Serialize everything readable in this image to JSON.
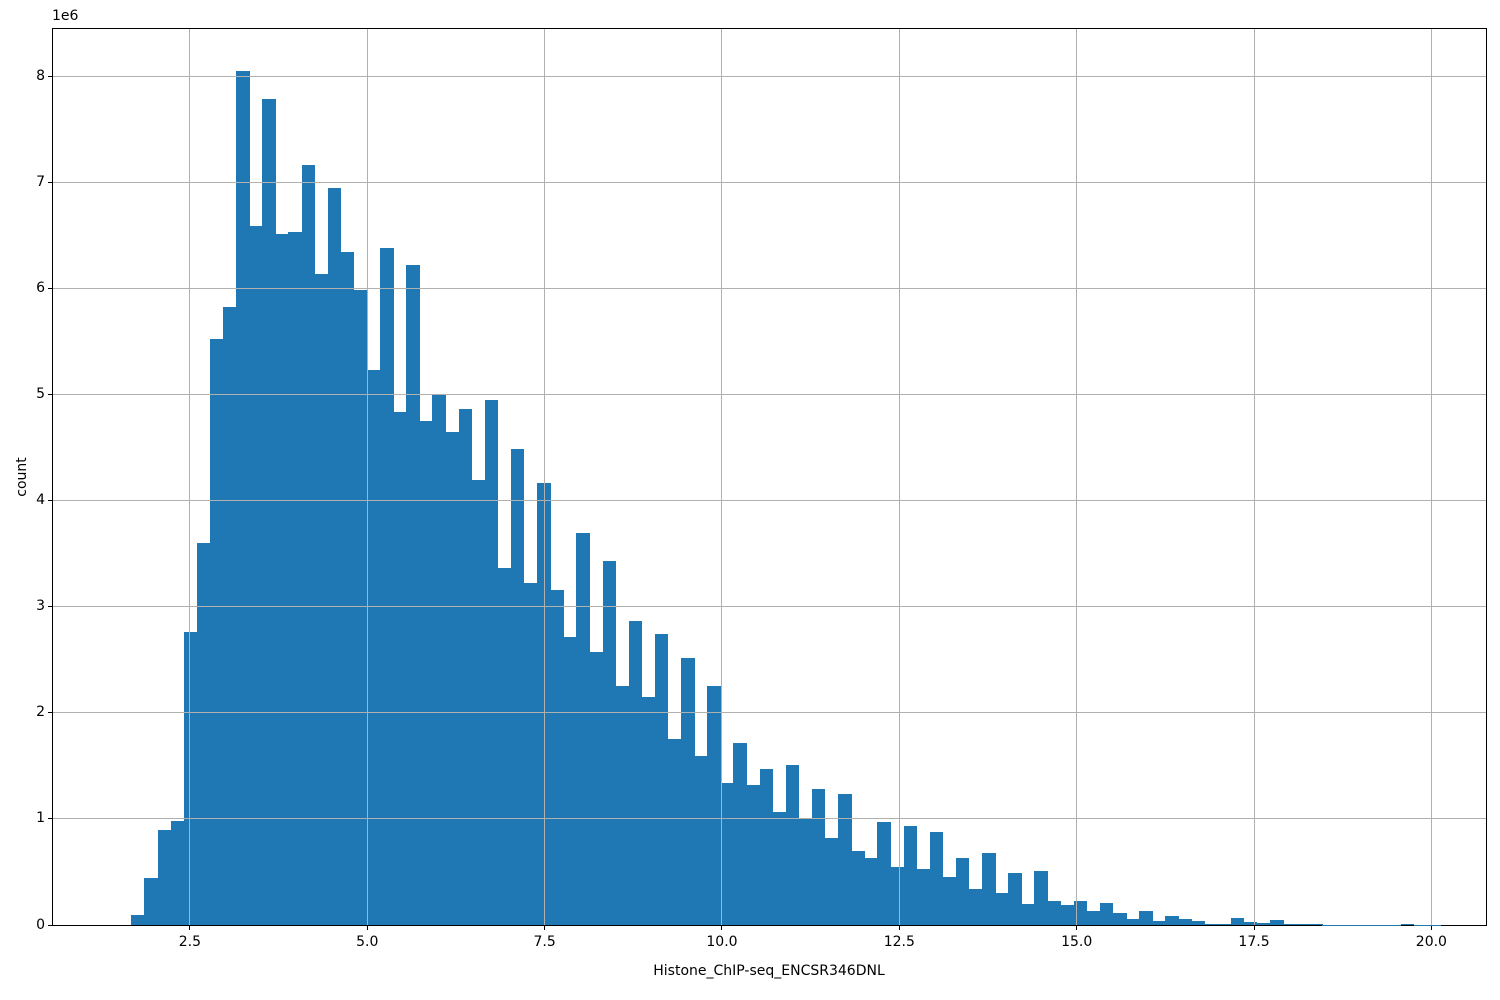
{
  "figure": {
    "background": "#ffffff",
    "text_color": "#000000",
    "spine_color": "#000000"
  },
  "chart_data": {
    "type": "bar",
    "subtype": "histogram",
    "title": "",
    "xlabel": "Histone_ChIP-seq_ENCSR346DNL",
    "ylabel": "count",
    "y_offset_label": "1e6",
    "bar_color": "#1f77b4",
    "grid": true,
    "grid_color": "#b0b0b0",
    "legend_position": "none",
    "xlim": [
      0.57,
      20.77
    ],
    "ylim": [
      0,
      8450000
    ],
    "xticks": [
      2.5,
      5.0,
      7.5,
      10.0,
      12.5,
      15.0,
      17.5,
      20.0
    ],
    "xtick_labels": [
      "2.5",
      "5.0",
      "7.5",
      "10.0",
      "12.5",
      "15.0",
      "17.5",
      "20.0"
    ],
    "yticks": [
      0,
      1000000,
      2000000,
      3000000,
      4000000,
      5000000,
      6000000,
      7000000,
      8000000
    ],
    "ytick_labels": [
      "0",
      "1",
      "2",
      "3",
      "4",
      "5",
      "6",
      "7",
      "8"
    ],
    "bin_start": 1.675,
    "bin_width": 0.1845,
    "counts": [
      90000,
      440000,
      900000,
      980000,
      2760000,
      3600000,
      5530000,
      5830000,
      8050000,
      6590000,
      7790000,
      6520000,
      6540000,
      7170000,
      6140000,
      6950000,
      6350000,
      5990000,
      5230000,
      6380000,
      4840000,
      6220000,
      4750000,
      5010000,
      4650000,
      4870000,
      4200000,
      4950000,
      3370000,
      4490000,
      3230000,
      4170000,
      3160000,
      2720000,
      3700000,
      2570000,
      3430000,
      2250000,
      2870000,
      2150000,
      2740000,
      1750000,
      2520000,
      1590000,
      2250000,
      1340000,
      1720000,
      1320000,
      1470000,
      1070000,
      1510000,
      1000000,
      1280000,
      820000,
      1240000,
      700000,
      630000,
      970000,
      550000,
      930000,
      530000,
      880000,
      450000,
      630000,
      340000,
      680000,
      300000,
      490000,
      200000,
      510000,
      230000,
      190000,
      230000,
      130000,
      210000,
      110000,
      60000,
      135000,
      40000,
      85000,
      57000,
      41000,
      5000,
      10000,
      63000,
      25000,
      19000,
      44000,
      13000,
      8000,
      5000,
      4000,
      3000,
      2000,
      2000,
      2000,
      3000,
      13000,
      4000,
      2000
    ]
  }
}
